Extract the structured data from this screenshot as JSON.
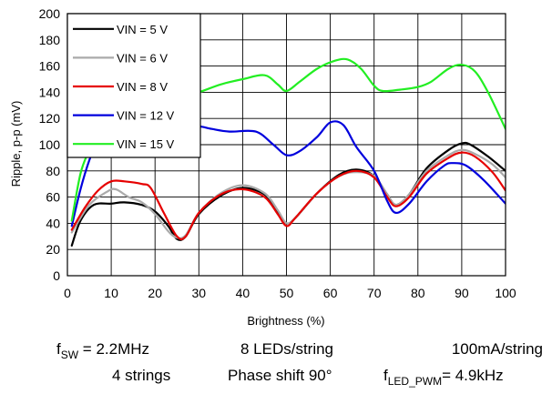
{
  "chart_data": {
    "type": "line",
    "xlabel": "Brightness (%)",
    "ylabel": "Ripple, p-p (mV)",
    "xlim": [
      0,
      100
    ],
    "ylim": [
      0,
      200
    ],
    "x_ticks": [
      "0",
      "10",
      "20",
      "30",
      "40",
      "50",
      "60",
      "70",
      "80",
      "90",
      "100"
    ],
    "y_ticks": [
      "0",
      "20",
      "40",
      "60",
      "80",
      "100",
      "120",
      "140",
      "160",
      "180",
      "200"
    ],
    "grid": true,
    "legend_position": "top-left",
    "series": [
      {
        "name": "VIN = 5 V",
        "color": "#000000",
        "points": [
          [
            1,
            23
          ],
          [
            3,
            42
          ],
          [
            6,
            54
          ],
          [
            10,
            55
          ],
          [
            13,
            56
          ],
          [
            17,
            54
          ],
          [
            20,
            49
          ],
          [
            23,
            38
          ],
          [
            25,
            28
          ],
          [
            27,
            30
          ],
          [
            30,
            47
          ],
          [
            35,
            61
          ],
          [
            40,
            67
          ],
          [
            45,
            62
          ],
          [
            48,
            49
          ],
          [
            50,
            40
          ],
          [
            52,
            44
          ],
          [
            57,
            63
          ],
          [
            62,
            77
          ],
          [
            66,
            81
          ],
          [
            70,
            76
          ],
          [
            73,
            62
          ],
          [
            75,
            54
          ],
          [
            78,
            62
          ],
          [
            82,
            82
          ],
          [
            87,
            96
          ],
          [
            90,
            101
          ],
          [
            92,
            100
          ],
          [
            96,
            91
          ],
          [
            100,
            80
          ]
        ]
      },
      {
        "name": "VIN = 6 V",
        "color": "#aaaaaa",
        "points": [
          [
            1,
            33
          ],
          [
            5,
            54
          ],
          [
            9,
            64
          ],
          [
            11,
            66
          ],
          [
            14,
            60
          ],
          [
            17,
            56
          ],
          [
            20,
            47
          ],
          [
            23,
            34
          ],
          [
            25,
            29
          ],
          [
            27,
            31
          ],
          [
            30,
            48
          ],
          [
            35,
            63
          ],
          [
            40,
            69
          ],
          [
            45,
            63
          ],
          [
            48,
            50
          ],
          [
            50,
            40
          ],
          [
            52,
            44
          ],
          [
            57,
            63
          ],
          [
            62,
            76
          ],
          [
            66,
            79
          ],
          [
            70,
            76
          ],
          [
            73,
            62
          ],
          [
            75,
            54
          ],
          [
            78,
            62
          ],
          [
            82,
            80
          ],
          [
            87,
            92
          ],
          [
            90,
            96
          ],
          [
            93,
            93
          ],
          [
            97,
            85
          ],
          [
            100,
            75
          ]
        ]
      },
      {
        "name": "VIN = 8 V",
        "color": "#e60000",
        "points": [
          [
            1,
            35
          ],
          [
            4,
            52
          ],
          [
            7,
            65
          ],
          [
            10,
            72
          ],
          [
            13,
            72
          ],
          [
            17,
            70
          ],
          [
            19,
            67
          ],
          [
            22,
            48
          ],
          [
            25,
            30
          ],
          [
            27,
            30
          ],
          [
            30,
            48
          ],
          [
            35,
            62
          ],
          [
            40,
            66
          ],
          [
            45,
            60
          ],
          [
            48,
            47
          ],
          [
            50,
            38
          ],
          [
            52,
            44
          ],
          [
            57,
            63
          ],
          [
            62,
            76
          ],
          [
            66,
            80
          ],
          [
            70,
            75
          ],
          [
            73,
            60
          ],
          [
            75,
            53
          ],
          [
            78,
            60
          ],
          [
            82,
            78
          ],
          [
            87,
            90
          ],
          [
            90,
            94
          ],
          [
            93,
            91
          ],
          [
            97,
            79
          ],
          [
            100,
            65
          ]
        ]
      },
      {
        "name": "VIN = 12 V",
        "color": "#0000dd",
        "points": [
          [
            1,
            38
          ],
          [
            3,
            66
          ],
          [
            5,
            88
          ],
          [
            7,
            104
          ],
          [
            10,
            110
          ],
          [
            13,
            111
          ],
          [
            17,
            110
          ],
          [
            20,
            112
          ],
          [
            23,
            115
          ],
          [
            27,
            113
          ],
          [
            30,
            114
          ],
          [
            33,
            112
          ],
          [
            37,
            110
          ],
          [
            43,
            110
          ],
          [
            47,
            100
          ],
          [
            50,
            92
          ],
          [
            53,
            95
          ],
          [
            57,
            106
          ],
          [
            60,
            117
          ],
          [
            63,
            115
          ],
          [
            66,
            98
          ],
          [
            70,
            80
          ],
          [
            73,
            57
          ],
          [
            75,
            48
          ],
          [
            78,
            55
          ],
          [
            82,
            72
          ],
          [
            86,
            84
          ],
          [
            88,
            86
          ],
          [
            91,
            84
          ],
          [
            95,
            73
          ],
          [
            100,
            55
          ]
        ]
      },
      {
        "name": "VIN = 15 V",
        "color": "#22ee22",
        "points": [
          [
            1,
            42
          ],
          [
            3,
            78
          ],
          [
            5,
            96
          ],
          [
            7,
            112
          ],
          [
            10,
            123
          ],
          [
            14,
            127
          ],
          [
            20,
            130
          ],
          [
            25,
            135
          ],
          [
            30,
            140
          ],
          [
            35,
            146
          ],
          [
            40,
            150
          ],
          [
            45,
            153
          ],
          [
            48,
            146
          ],
          [
            50,
            141
          ],
          [
            53,
            148
          ],
          [
            57,
            158
          ],
          [
            61,
            164
          ],
          [
            64,
            165
          ],
          [
            67,
            158
          ],
          [
            70,
            145
          ],
          [
            72,
            141
          ],
          [
            76,
            142
          ],
          [
            80,
            144
          ],
          [
            83,
            148
          ],
          [
            87,
            158
          ],
          [
            90,
            161
          ],
          [
            93,
            156
          ],
          [
            96,
            140
          ],
          [
            100,
            112
          ]
        ]
      }
    ]
  },
  "captions": {
    "fsw_base": "f",
    "fsw_sub": "SW",
    "fsw_value": " = 2.2MHz",
    "leds": "8 LEDs/string",
    "current": "100mA/string",
    "strings": "4 strings",
    "phase": "Phase shift 90°",
    "fled_base": "f",
    "fled_sub": "LED_PWM",
    "fled_value": "= 4.9kHz"
  }
}
